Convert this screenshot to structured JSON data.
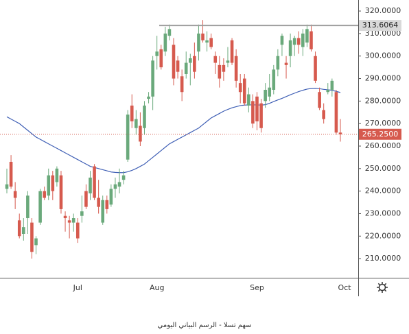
{
  "chart_data": {
    "type": "candlestick",
    "categories": [
      null,
      null,
      null,
      null,
      null,
      null,
      null,
      null,
      null,
      null,
      null,
      null,
      null,
      null,
      null,
      null,
      null,
      "Jul",
      null,
      null,
      null,
      null,
      null,
      null,
      null,
      null,
      null,
      null,
      null,
      null,
      null,
      null,
      null,
      null,
      null,
      null,
      "Aug",
      null,
      null,
      null,
      null,
      null,
      null,
      null,
      null,
      null,
      null,
      null,
      null,
      null,
      null,
      null,
      null,
      null,
      null,
      null,
      null,
      null,
      null,
      null,
      "Sep",
      null,
      null,
      null,
      null,
      null,
      null,
      null,
      null,
      null,
      null,
      null,
      null,
      null,
      null,
      null,
      null,
      null,
      null,
      null,
      null,
      "Oct"
    ],
    "open": [
      241,
      253,
      240,
      227,
      221,
      228,
      226,
      216,
      226,
      240,
      238,
      247,
      244,
      247,
      229,
      227,
      226,
      226,
      229,
      240,
      239,
      251,
      237,
      226,
      236,
      234,
      241,
      242,
      245,
      254,
      278,
      268,
      269,
      268,
      281,
      282,
      300,
      303,
      302,
      309,
      305,
      298,
      291,
      292,
      297,
      300,
      302,
      310,
      306,
      308,
      300,
      296,
      296,
      297,
      307,
      300,
      288,
      290,
      278,
      280,
      282,
      279,
      280,
      282,
      285,
      294,
      305,
      297,
      300,
      305,
      308,
      304,
      306,
      311,
      300,
      284,
      276,
      284,
      285,
      284,
      266,
      null
    ],
    "high": [
      250,
      256,
      244,
      230,
      228,
      240,
      228,
      220,
      241,
      242,
      250,
      249,
      251,
      249,
      231,
      229,
      230,
      228,
      238,
      243,
      249,
      252,
      245,
      238,
      238,
      243,
      246,
      250,
      249,
      276,
      283,
      276,
      275,
      280,
      284,
      300,
      309,
      305,
      313,
      314,
      308,
      300,
      294,
      302,
      301,
      306,
      314,
      316,
      311,
      310,
      302,
      300,
      299,
      304,
      308,
      303,
      292,
      292,
      286,
      283,
      284,
      281,
      288,
      292,
      296,
      303,
      310,
      300,
      310,
      309,
      311,
      312,
      314,
      314,
      302,
      286,
      279,
      288,
      290,
      285,
      272,
      null
    ],
    "low": [
      239,
      241,
      232,
      219,
      218,
      221,
      210,
      212,
      225,
      236,
      236,
      236,
      242,
      230,
      222,
      219,
      222,
      217,
      226,
      232,
      236,
      236,
      230,
      225,
      230,
      233,
      237,
      239,
      243,
      253,
      268,
      265,
      260,
      265,
      279,
      276,
      294,
      294,
      300,
      307,
      287,
      290,
      280,
      290,
      287,
      290,
      298,
      306,
      302,
      303,
      292,
      286,
      289,
      295,
      296,
      286,
      279,
      278,
      275,
      268,
      267,
      266,
      277,
      280,
      283,
      291,
      300,
      290,
      295,
      300,
      301,
      300,
      304,
      302,
      288,
      276,
      270,
      283,
      282,
      265,
      262,
      null
    ],
    "close": [
      243,
      242,
      237,
      220,
      224,
      238,
      213,
      219,
      240,
      237,
      247,
      240,
      250,
      232,
      228,
      226,
      228,
      219,
      231,
      233,
      246,
      237,
      233,
      236,
      232,
      241,
      243,
      244,
      247,
      274,
      271,
      272,
      262,
      278,
      282,
      298,
      302,
      295,
      310,
      312,
      290,
      293,
      284,
      297,
      299,
      293,
      310,
      307,
      307,
      304,
      297,
      290,
      293,
      298,
      297,
      289,
      284,
      279,
      283,
      270,
      271,
      268,
      285,
      286,
      294,
      300,
      309,
      296,
      307,
      308,
      305,
      310,
      312,
      303,
      289,
      277,
      272,
      285,
      289,
      266,
      265.25,
      null
    ],
    "up_color": "#6aa97b",
    "down_color": "#d65a4e",
    "ma": {
      "color": "#3f5fb5",
      "values": [
        273,
        272,
        271,
        270,
        268.5,
        267,
        265.5,
        264,
        263,
        262,
        261,
        260,
        259,
        258,
        257,
        256,
        255,
        254,
        253,
        252,
        251,
        250.5,
        250,
        249.5,
        249,
        248.5,
        248.3,
        248.2,
        248.2,
        248.6,
        249.2,
        250,
        251,
        252,
        253.5,
        255,
        256.5,
        258,
        259.5,
        261,
        262,
        263,
        264,
        265,
        266,
        267,
        268,
        269.5,
        271,
        272.5,
        273.5,
        274.5,
        275.5,
        276.3,
        277,
        277.5,
        278,
        278.2,
        278.3,
        278.3,
        278.3,
        278.2,
        278.4,
        279,
        279.8,
        280.5,
        281.2,
        282,
        282.8,
        283.5,
        284.2,
        284.8,
        285.3,
        285.6,
        285.7,
        285.5,
        285.2,
        285,
        284.8,
        284.3,
        283.8,
        null
      ]
    },
    "ylim": [
      201.5,
      324.9
    ],
    "yticks": [
      {
        "value": 210,
        "label": "210.0000"
      },
      {
        "value": 220,
        "label": "220.0000"
      },
      {
        "value": 230,
        "label": "230.0000"
      },
      {
        "value": 240,
        "label": "240.0000"
      },
      {
        "value": 250,
        "label": "250.0000"
      },
      {
        "value": 260,
        "label": "260.0000"
      },
      {
        "value": 270,
        "label": "270.0000"
      },
      {
        "value": 280,
        "label": "280.0000"
      },
      {
        "value": 290,
        "label": "290.0000"
      },
      {
        "value": 300,
        "label": "300.0000"
      },
      {
        "value": 310,
        "label": "310.0000"
      },
      {
        "value": 320,
        "label": "320.0000"
      }
    ],
    "price_lines": [
      {
        "value": 313.6064,
        "color": "#9e9e9e"
      },
      {
        "value": 265.25,
        "label": "265.2500",
        "color": "#d65a4e"
      }
    ],
    "caption": "سهم تسلا - الرسم البياني اليومي"
  }
}
